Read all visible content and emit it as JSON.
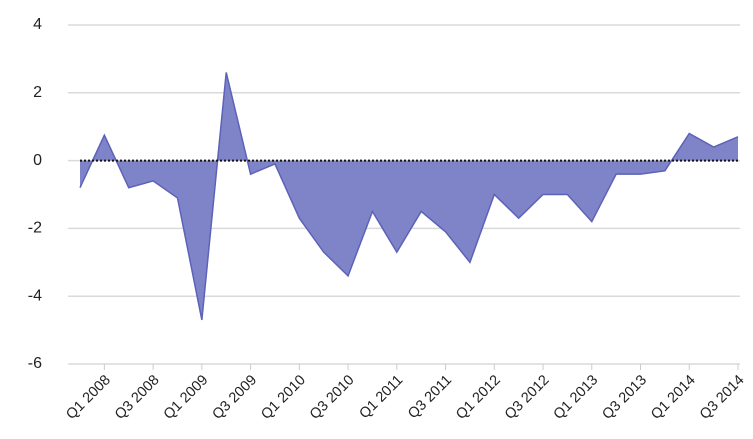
{
  "chart_data": {
    "type": "area",
    "categories": [
      null,
      "Q1 2008",
      null,
      "Q3 2008",
      null,
      "Q1 2009",
      null,
      "Q3 2009",
      null,
      "Q1 2010",
      null,
      "Q3 2010",
      null,
      "Q1 2011",
      null,
      "Q3 2011",
      null,
      "Q1 2012",
      null,
      "Q3 2012",
      null,
      "Q1 2013",
      null,
      "Q3 2013",
      null,
      "Q1 2014",
      null,
      "Q3 2014"
    ],
    "values": [
      -0.8,
      0.75,
      -0.8,
      -0.6,
      -1.1,
      -4.7,
      2.6,
      -0.4,
      -0.1,
      -1.7,
      -2.7,
      -3.4,
      -1.5,
      -2.7,
      -1.5,
      -2.1,
      -3.0,
      -1.0,
      -1.7,
      -1.0,
      -1.0,
      -1.8,
      -0.4,
      -0.4,
      -0.3,
      0.8,
      0.4,
      0.7
    ],
    "color": "#7f84c9",
    "ylim": [
      -6,
      4
    ],
    "yticks": [
      -6,
      -4,
      -2,
      0,
      2,
      4
    ],
    "grid": true
  }
}
